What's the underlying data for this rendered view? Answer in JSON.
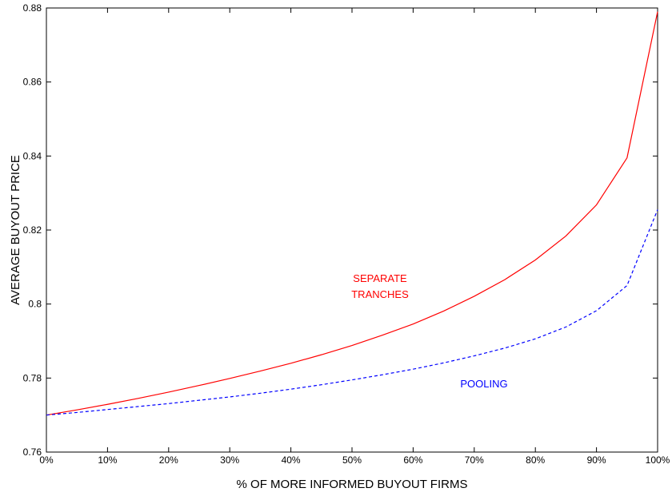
{
  "chart_data": {
    "type": "line",
    "title": "",
    "xlabel": "% OF MORE INFORMED BUYOUT FIRMS",
    "ylabel": "AVERAGE BUYOUT PRICE",
    "xlim": [
      0,
      100
    ],
    "ylim": [
      0.76,
      0.88
    ],
    "grid": false,
    "x_ticks": [
      0,
      10,
      20,
      30,
      40,
      50,
      60,
      70,
      80,
      90,
      100
    ],
    "x_tick_labels": [
      "0%",
      "10%",
      "20%",
      "30%",
      "40%",
      "50%",
      "60%",
      "70%",
      "80%",
      "90%",
      "100%"
    ],
    "y_ticks": [
      0.76,
      0.78,
      0.8,
      0.82,
      0.84,
      0.86,
      0.88
    ],
    "y_tick_labels": [
      "0.76",
      "0.78",
      "0.8",
      "0.82",
      "0.84",
      "0.86",
      "0.88"
    ],
    "x": [
      0,
      5,
      10,
      15,
      20,
      25,
      30,
      35,
      40,
      45,
      50,
      55,
      60,
      65,
      70,
      75,
      80,
      85,
      90,
      95,
      100
    ],
    "series": [
      {
        "name": "SEPARATE TRANCHES",
        "color": "#ff0000",
        "style": "solid",
        "values": [
          0.77,
          0.7714,
          0.7729,
          0.7745,
          0.7762,
          0.778,
          0.7799,
          0.7819,
          0.784,
          0.7863,
          0.7888,
          0.7916,
          0.7946,
          0.7981,
          0.8021,
          0.8066,
          0.8119,
          0.8184,
          0.8268,
          0.8395,
          0.879
        ]
      },
      {
        "name": "POOLING",
        "color": "#0000ff",
        "style": "dashed",
        "values": [
          0.77,
          0.7707,
          0.7715,
          0.7723,
          0.7731,
          0.774,
          0.7749,
          0.7759,
          0.777,
          0.7782,
          0.7795,
          0.7809,
          0.7824,
          0.7841,
          0.786,
          0.7881,
          0.7906,
          0.7938,
          0.7982,
          0.805,
          0.8255
        ]
      }
    ],
    "annotations": [
      {
        "lines": [
          "SEPARATE",
          "TRANCHES"
        ],
        "color": "#ff0000"
      },
      {
        "lines": [
          "POOLING"
        ],
        "color": "#0000ff"
      }
    ]
  }
}
